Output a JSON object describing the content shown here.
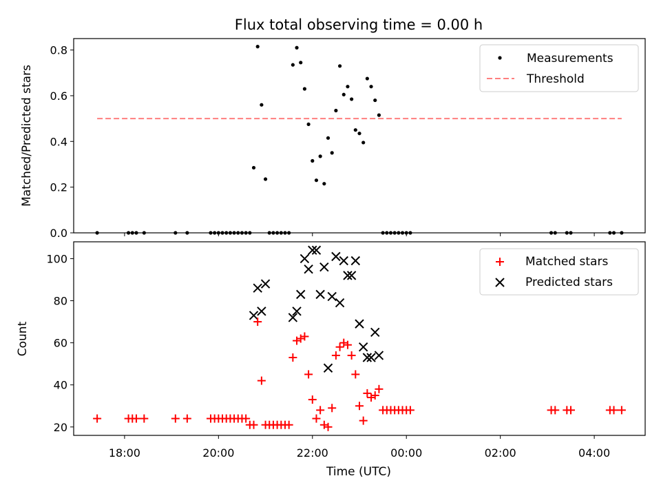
{
  "chart_data": [
    {
      "type": "scatter",
      "title": "Flux total observing time = 0.00 h",
      "ylabel": "Matched/Predicted stars",
      "xlabel": "",
      "ylim": [
        0,
        0.85
      ],
      "yticks": [
        0.0,
        0.2,
        0.4,
        0.6,
        0.8
      ],
      "ytick_labels": [
        "0.0",
        "0.2",
        "0.4",
        "0.6",
        "0.8"
      ],
      "legend_position": "top-right",
      "series": [
        {
          "name": "Measurements",
          "kind": "points",
          "color": "#000000",
          "points": [
            [
              "17:25",
              0.0
            ],
            [
              "18:05",
              0.0
            ],
            [
              "18:10",
              0.0
            ],
            [
              "18:15",
              0.0
            ],
            [
              "18:25",
              0.0
            ],
            [
              "19:05",
              0.0
            ],
            [
              "19:20",
              0.0
            ],
            [
              "19:50",
              0.0
            ],
            [
              "19:55",
              0.0
            ],
            [
              "20:00",
              0.0
            ],
            [
              "20:05",
              0.0
            ],
            [
              "20:10",
              0.0
            ],
            [
              "20:15",
              0.0
            ],
            [
              "20:20",
              0.0
            ],
            [
              "20:25",
              0.0
            ],
            [
              "20:30",
              0.0
            ],
            [
              "20:35",
              0.0
            ],
            [
              "20:40",
              0.0
            ],
            [
              "20:45",
              0.285
            ],
            [
              "20:50",
              0.815
            ],
            [
              "20:55",
              0.56
            ],
            [
              "21:00",
              0.235
            ],
            [
              "21:05",
              0.0
            ],
            [
              "21:10",
              0.0
            ],
            [
              "21:15",
              0.0
            ],
            [
              "21:20",
              0.0
            ],
            [
              "21:25",
              0.0
            ],
            [
              "21:30",
              0.0
            ],
            [
              "21:35",
              0.735
            ],
            [
              "21:40",
              0.81
            ],
            [
              "21:45",
              0.745
            ],
            [
              "21:50",
              0.63
            ],
            [
              "21:55",
              0.475
            ],
            [
              "22:00",
              0.315
            ],
            [
              "22:05",
              0.23
            ],
            [
              "22:10",
              0.335
            ],
            [
              "22:15",
              0.215
            ],
            [
              "22:20",
              0.415
            ],
            [
              "22:25",
              0.35
            ],
            [
              "22:30",
              0.535
            ],
            [
              "22:35",
              0.73
            ],
            [
              "22:40",
              0.605
            ],
            [
              "22:45",
              0.64
            ],
            [
              "22:50",
              0.585
            ],
            [
              "22:55",
              0.45
            ],
            [
              "23:00",
              0.435
            ],
            [
              "23:05",
              0.395
            ],
            [
              "23:10",
              0.675
            ],
            [
              "23:15",
              0.64
            ],
            [
              "23:20",
              0.58
            ],
            [
              "23:25",
              0.515
            ],
            [
              "23:30",
              0.0
            ],
            [
              "23:35",
              0.0
            ],
            [
              "23:40",
              0.0
            ],
            [
              "23:45",
              0.0
            ],
            [
              "23:50",
              0.0
            ],
            [
              "23:55",
              0.0
            ],
            [
              "00:00",
              0.0
            ],
            [
              "00:05",
              0.0
            ],
            [
              "03:05",
              0.0
            ],
            [
              "03:10",
              0.0
            ],
            [
              "03:25",
              0.0
            ],
            [
              "03:30",
              0.0
            ],
            [
              "04:20",
              0.0
            ],
            [
              "04:25",
              0.0
            ],
            [
              "04:35",
              0.0
            ]
          ]
        },
        {
          "name": "Threshold",
          "kind": "dashed-line",
          "color": "#ff7f7f",
          "points": [
            [
              "17:25",
              0.5
            ],
            [
              "04:35",
              0.5
            ]
          ]
        }
      ]
    },
    {
      "type": "scatter",
      "xlabel": "Time (UTC)",
      "ylabel": "Count",
      "ylim": [
        16,
        108
      ],
      "yticks": [
        20,
        40,
        60,
        80,
        100
      ],
      "ytick_labels": [
        "20",
        "40",
        "60",
        "80",
        "100"
      ],
      "xticks": [
        "18:00",
        "20:00",
        "22:00",
        "00:00",
        "02:00",
        "04:00"
      ],
      "xlim": [
        "16:55",
        "05:05"
      ],
      "legend_position": "top-right",
      "series": [
        {
          "name": "Matched stars",
          "marker": "plus",
          "color": "#ff0000",
          "points": [
            [
              "17:25",
              24
            ],
            [
              "18:05",
              24
            ],
            [
              "18:10",
              24
            ],
            [
              "18:15",
              24
            ],
            [
              "18:25",
              24
            ],
            [
              "19:05",
              24
            ],
            [
              "19:20",
              24
            ],
            [
              "19:50",
              24
            ],
            [
              "19:55",
              24
            ],
            [
              "20:00",
              24
            ],
            [
              "20:05",
              24
            ],
            [
              "20:10",
              24
            ],
            [
              "20:15",
              24
            ],
            [
              "20:20",
              24
            ],
            [
              "20:25",
              24
            ],
            [
              "20:30",
              24
            ],
            [
              "20:35",
              24
            ],
            [
              "20:40",
              21
            ],
            [
              "20:45",
              21
            ],
            [
              "20:50",
              70
            ],
            [
              "20:55",
              42
            ],
            [
              "21:00",
              21
            ],
            [
              "21:05",
              21
            ],
            [
              "21:10",
              21
            ],
            [
              "21:15",
              21
            ],
            [
              "21:20",
              21
            ],
            [
              "21:25",
              21
            ],
            [
              "21:30",
              21
            ],
            [
              "21:35",
              53
            ],
            [
              "21:40",
              61
            ],
            [
              "21:45",
              62
            ],
            [
              "21:50",
              63
            ],
            [
              "21:55",
              45
            ],
            [
              "22:00",
              33
            ],
            [
              "22:05",
              24
            ],
            [
              "22:10",
              28
            ],
            [
              "22:15",
              21
            ],
            [
              "22:20",
              20
            ],
            [
              "22:25",
              29
            ],
            [
              "22:30",
              54
            ],
            [
              "22:35",
              58
            ],
            [
              "22:40",
              60
            ],
            [
              "22:45",
              59
            ],
            [
              "22:50",
              54
            ],
            [
              "22:55",
              45
            ],
            [
              "23:00",
              30
            ],
            [
              "23:05",
              23
            ],
            [
              "23:10",
              36
            ],
            [
              "23:15",
              34
            ],
            [
              "23:20",
              35
            ],
            [
              "23:25",
              38
            ],
            [
              "23:30",
              28
            ],
            [
              "23:35",
              28
            ],
            [
              "23:40",
              28
            ],
            [
              "23:45",
              28
            ],
            [
              "23:50",
              28
            ],
            [
              "23:55",
              28
            ],
            [
              "00:00",
              28
            ],
            [
              "00:05",
              28
            ],
            [
              "03:05",
              28
            ],
            [
              "03:10",
              28
            ],
            [
              "03:25",
              28
            ],
            [
              "03:30",
              28
            ],
            [
              "04:20",
              28
            ],
            [
              "04:25",
              28
            ],
            [
              "04:35",
              28
            ]
          ]
        },
        {
          "name": "Predicted stars",
          "marker": "x",
          "color": "#000000",
          "points": [
            [
              "20:45",
              73
            ],
            [
              "20:50",
              86
            ],
            [
              "20:55",
              75
            ],
            [
              "21:00",
              88
            ],
            [
              "21:35",
              72
            ],
            [
              "21:40",
              75
            ],
            [
              "21:45",
              83
            ],
            [
              "21:50",
              100
            ],
            [
              "21:55",
              95
            ],
            [
              "22:00",
              104
            ],
            [
              "22:05",
              104
            ],
            [
              "22:10",
              83
            ],
            [
              "22:15",
              96
            ],
            [
              "22:20",
              48
            ],
            [
              "22:25",
              82
            ],
            [
              "22:30",
              101
            ],
            [
              "22:35",
              79
            ],
            [
              "22:40",
              99
            ],
            [
              "22:45",
              92
            ],
            [
              "22:50",
              92
            ],
            [
              "22:55",
              99
            ],
            [
              "23:00",
              69
            ],
            [
              "23:05",
              58
            ],
            [
              "23:10",
              53
            ],
            [
              "23:15",
              53
            ],
            [
              "23:20",
              65
            ],
            [
              "23:25",
              54
            ]
          ]
        }
      ]
    }
  ]
}
